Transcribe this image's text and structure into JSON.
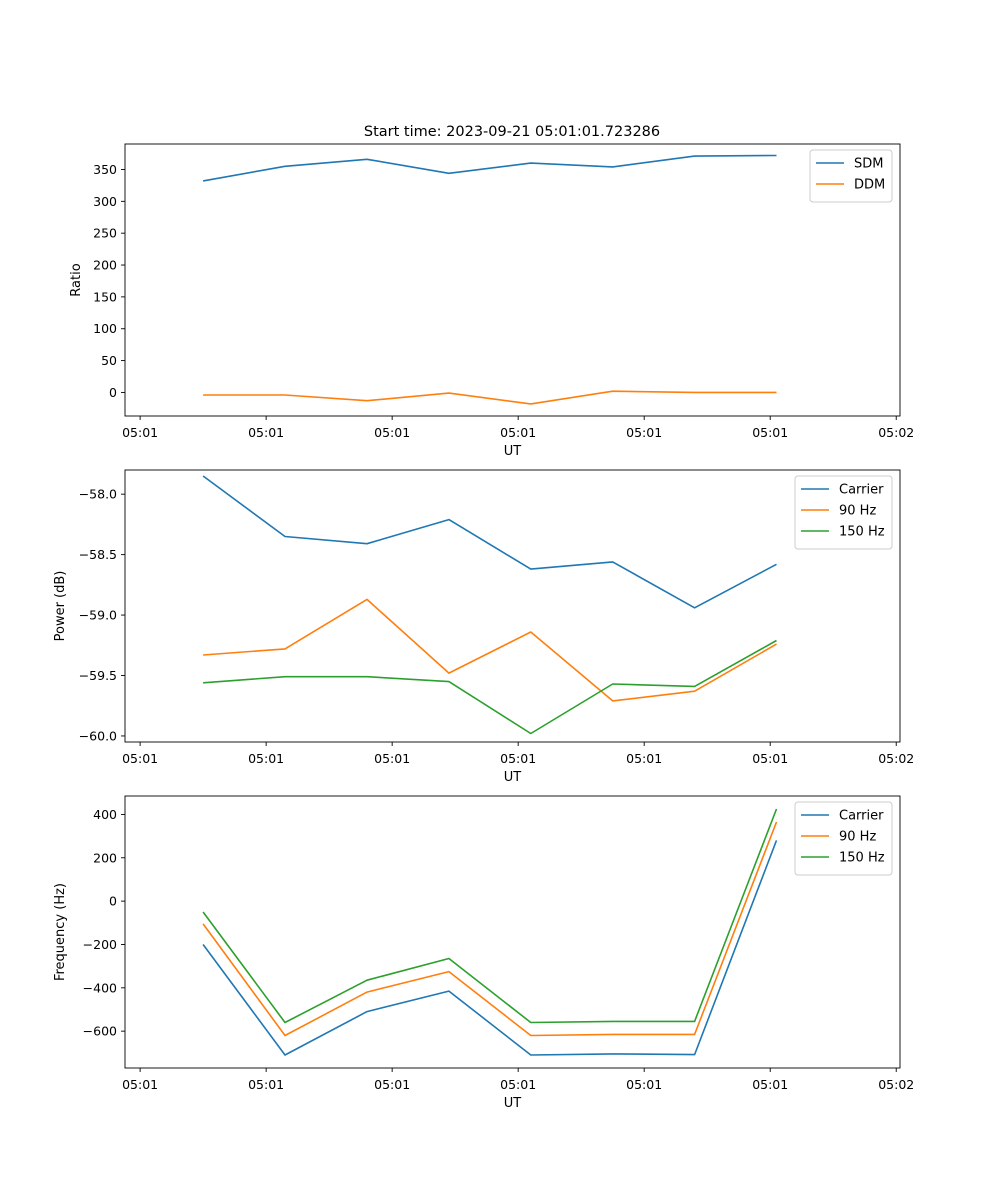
{
  "title": "Start time: 2023-09-21 05:01:01.723286",
  "chart_data": [
    {
      "type": "line",
      "xlabel": "UT",
      "ylabel": "Ratio",
      "xticks": [
        "05:01",
        "05:01",
        "05:01",
        "05:01",
        "05:01",
        "05:01",
        "05:02"
      ],
      "yticks": [
        "0",
        "50",
        "100",
        "150",
        "200",
        "250",
        "300",
        "350"
      ],
      "ylim": [
        -37,
        390
      ],
      "x": [
        0.5,
        1.15,
        1.8,
        2.45,
        3.1,
        3.75,
        4.4,
        5.05
      ],
      "xlim": [
        -0.12,
        6.03
      ],
      "legend_position": "top-right",
      "series": [
        {
          "name": "SDM",
          "color": "#1f77b4",
          "values": [
            332,
            355,
            366,
            344,
            360,
            354,
            371,
            372
          ]
        },
        {
          "name": "DDM",
          "color": "#ff7f0e",
          "values": [
            -4,
            -4,
            -13,
            -1,
            -18,
            2,
            0,
            0
          ]
        }
      ]
    },
    {
      "type": "line",
      "xlabel": "UT",
      "ylabel": "Power (dB)",
      "xticks": [
        "05:01",
        "05:01",
        "05:01",
        "05:01",
        "05:01",
        "05:01",
        "05:02"
      ],
      "yticks": [
        "−60.0",
        "−59.5",
        "−59.0",
        "−58.5",
        "−58.0"
      ],
      "ytick_values": [
        -60.0,
        -59.5,
        -59.0,
        -58.5,
        -58.0
      ],
      "ylim": [
        -60.05,
        -57.8
      ],
      "x": [
        0.5,
        1.15,
        1.8,
        2.45,
        3.1,
        3.75,
        4.4,
        5.05
      ],
      "xlim": [
        -0.12,
        6.03
      ],
      "legend_position": "top-right",
      "series": [
        {
          "name": "Carrier",
          "color": "#1f77b4",
          "values": [
            -57.85,
            -58.35,
            -58.41,
            -58.21,
            -58.62,
            -58.56,
            -58.94,
            -58.58
          ]
        },
        {
          "name": "90 Hz",
          "color": "#ff7f0e",
          "values": [
            -59.33,
            -59.28,
            -58.87,
            -59.48,
            -59.14,
            -59.71,
            -59.63,
            -59.24
          ]
        },
        {
          "name": "150 Hz",
          "color": "#2ca02c",
          "values": [
            -59.56,
            -59.51,
            -59.51,
            -59.55,
            -59.98,
            -59.57,
            -59.59,
            -59.21
          ]
        }
      ]
    },
    {
      "type": "line",
      "xlabel": "UT",
      "ylabel": "Frequency (Hz)",
      "xticks": [
        "05:01",
        "05:01",
        "05:01",
        "05:01",
        "05:01",
        "05:01",
        "05:02"
      ],
      "yticks": [
        "−600",
        "−400",
        "−200",
        "0",
        "200",
        "400"
      ],
      "ytick_values": [
        -600,
        -400,
        -200,
        0,
        200,
        400
      ],
      "ylim": [
        -770,
        485
      ],
      "x": [
        0.5,
        1.15,
        1.8,
        2.45,
        3.1,
        3.75,
        4.4,
        5.05
      ],
      "xlim": [
        -0.12,
        6.03
      ],
      "legend_position": "top-right",
      "series": [
        {
          "name": "Carrier",
          "color": "#1f77b4",
          "values": [
            -200,
            -710,
            -510,
            -415,
            -710,
            -705,
            -708,
            280
          ]
        },
        {
          "name": "90 Hz",
          "color": "#ff7f0e",
          "values": [
            -105,
            -620,
            -420,
            -325,
            -620,
            -615,
            -615,
            365
          ]
        },
        {
          "name": "150 Hz",
          "color": "#2ca02c",
          "values": [
            -50,
            -560,
            -365,
            -265,
            -560,
            -555,
            -555,
            425
          ]
        }
      ]
    }
  ]
}
